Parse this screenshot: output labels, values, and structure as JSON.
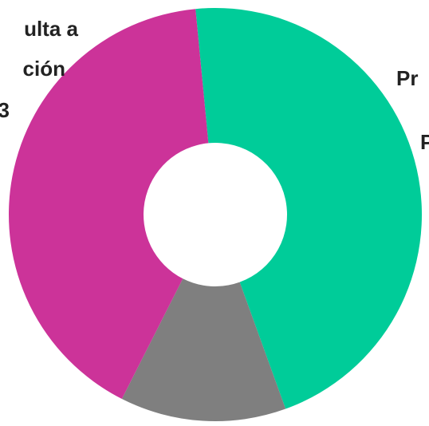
{
  "chart_data": {
    "type": "donut",
    "category_lines": [
      [
        "Pr",
        "P"
      ],
      null,
      [
        "ulta a",
        "ción",
        "3"
      ]
    ],
    "values": [
      46,
      13,
      41
    ],
    "colors": [
      "#00cc99",
      "#7f7f7f",
      "#cc3399"
    ],
    "start_angle": -5.5
  }
}
